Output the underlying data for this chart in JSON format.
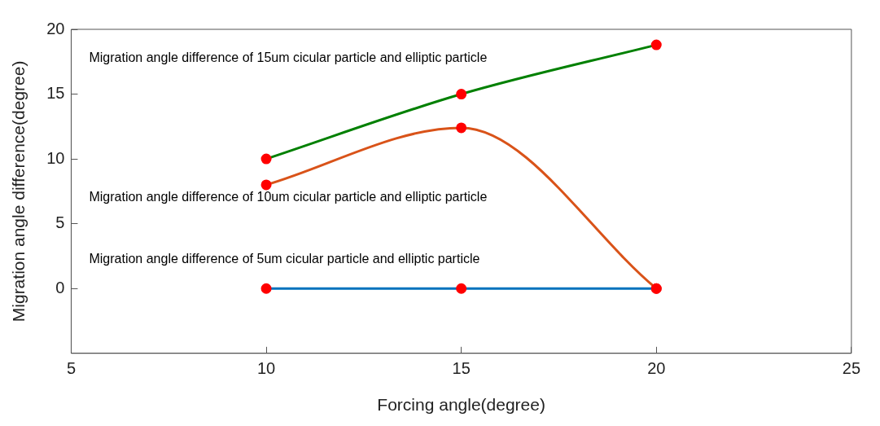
{
  "chart_data": {
    "type": "line",
    "xlabel": "Forcing angle(degree)",
    "ylabel": "Migration angle difference(degree)",
    "x": [
      10,
      15,
      20
    ],
    "series": [
      {
        "name": "Migration angle difference of 5um cicular particle and elliptic particle",
        "color": "#0072bd",
        "colors": [
          "#ff0000",
          "#ff0000",
          "#ff0000"
        ],
        "values": [
          0,
          0,
          0
        ]
      },
      {
        "name": "Migration angle difference of 10um cicular particle and elliptic particle",
        "color": "#d95319",
        "colors": [
          "#ff0000",
          "#ff0000",
          "#ff0000"
        ],
        "values": [
          8,
          12.4,
          0
        ]
      },
      {
        "name": "Migration angle difference of 15um cicular particle and elliptic particle",
        "color": "#008000",
        "colors": [
          "#ff0000",
          "#ff0000",
          "#ff0000"
        ],
        "values": [
          10,
          15,
          18.8
        ]
      }
    ],
    "xlim": [
      5,
      25
    ],
    "xticks": [
      5,
      10,
      15,
      20,
      25
    ],
    "ylim": [
      -5,
      20
    ],
    "yticks": [
      0,
      5,
      10,
      15,
      20
    ],
    "grid": false,
    "legend": false,
    "marker": "circle",
    "line_style": "solid"
  }
}
